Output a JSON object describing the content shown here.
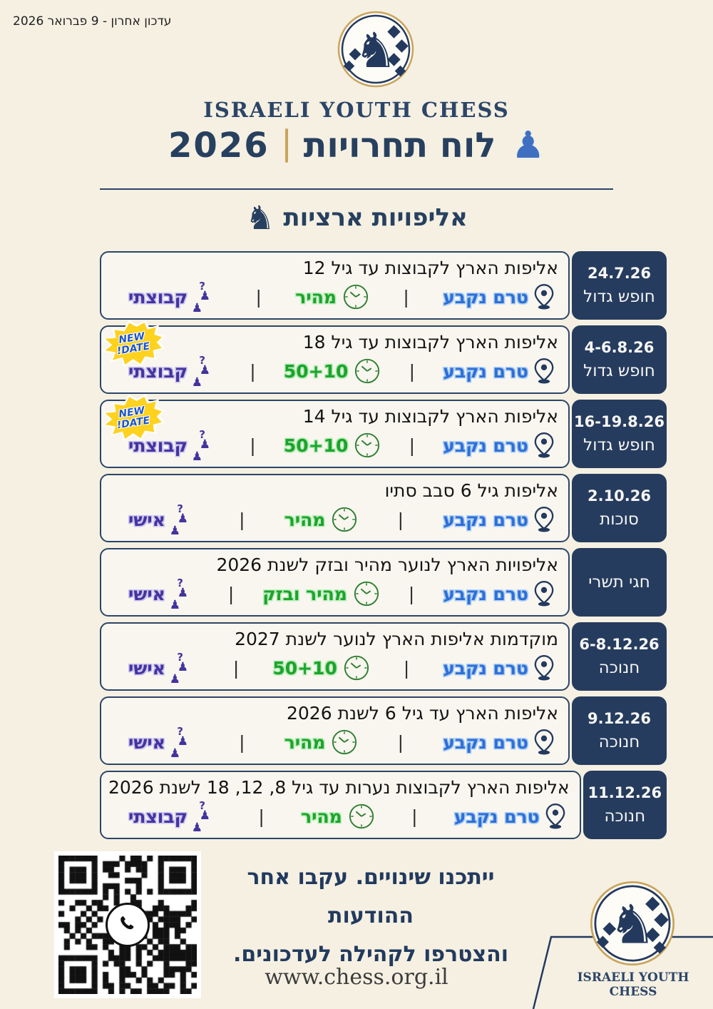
{
  "meta": {
    "last_update": "עדכון אחרון  -  9 פברואר 2026"
  },
  "header": {
    "brand": "ISRAELI YOUTH CHESS",
    "title": "לוח תחרויות",
    "year": "2026",
    "section_title": "אליפויות ארציות"
  },
  "ui": {
    "separator": "|",
    "new_date_label": "NEW DATE!"
  },
  "icons": {
    "logo": "knight-in-circle-logo",
    "title_piece": "chess-pawn-icon",
    "section": "knight-icon",
    "location": "location-pin-icon",
    "time": "clock-icon",
    "type": "chess-pieces-question-icon",
    "qr_center": "whatsapp-icon"
  },
  "colors": {
    "background": "#f5f0e2",
    "navy": "#263c5e",
    "gold": "#c9a45c",
    "location_blue": "#2e6fd6",
    "time_green": "#1da32c",
    "type_purple": "#43349e",
    "badge_yellow": "#ffd21f"
  },
  "cards": [
    {
      "date": "24.7.26",
      "period": "חופש גדול",
      "title": "אליפות הארץ לקבוצות עד גיל 12",
      "location": "טרם נקבע",
      "time": "מהיר",
      "type": "קבוצתי",
      "new_date": false
    },
    {
      "date": "4-6.8.26",
      "period": "חופש גדול",
      "title": "אליפות הארץ לקבוצות עד גיל 18",
      "location": "טרם נקבע",
      "time": "50+10",
      "type": "קבוצתי",
      "new_date": true
    },
    {
      "date": "16-19.8.26",
      "period": "חופש גדול",
      "title": "אליפות הארץ לקבוצות עד גיל 14",
      "location": "טרם נקבע",
      "time": "50+10",
      "type": "קבוצתי",
      "new_date": true
    },
    {
      "date": "2.10.26",
      "period": "סוכות",
      "title": "אליפות גיל 6 סבב סתיו",
      "location": "טרם נקבע",
      "time": "מהיר",
      "type": "אישי",
      "new_date": false
    },
    {
      "date": "",
      "period": "חגי תשרי",
      "title": "אליפויות הארץ לנוער מהיר ובזק לשנת 2026",
      "location": "טרם נקבע",
      "time": "מהיר ובזק",
      "type": "אישי",
      "new_date": false
    },
    {
      "date": "6-8.12.26",
      "period": "חנוכה",
      "title": "מוקדמות אליפות הארץ לנוער לשנת 2027",
      "location": "טרם נקבע",
      "time": "50+10",
      "type": "אישי",
      "new_date": false
    },
    {
      "date": "9.12.26",
      "period": "חנוכה",
      "title": "אליפות הארץ עד גיל 6 לשנת 2026",
      "location": "טרם נקבע",
      "time": "מהיר",
      "type": "אישי",
      "new_date": false
    },
    {
      "date": "11.12.26",
      "period": "חנוכה",
      "title": "אליפות הארץ לקבוצות נערות עד גיל 8, 12, 18 לשנת 2026",
      "location": "טרם נקבע",
      "time": "מהיר",
      "type": "קבוצתי",
      "new_date": false
    }
  ],
  "footer": {
    "note_line1": "ייתכנו שינויים. עקבו אחר ההודעות",
    "note_line2": "והצטרפו לקהילה לעדכונים.",
    "url": "www.chess.org.il",
    "brand": "ISRAELI YOUTH CHESS"
  }
}
